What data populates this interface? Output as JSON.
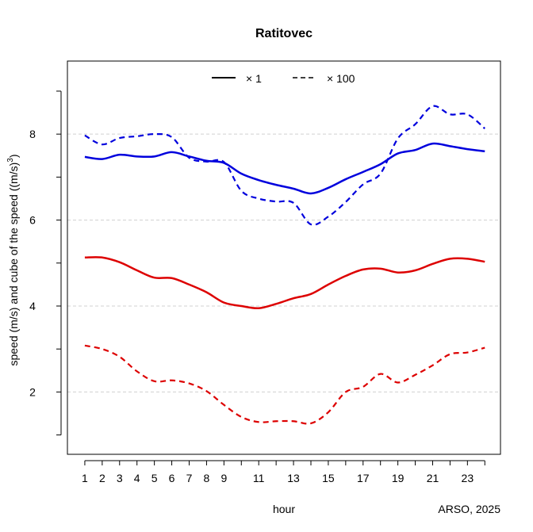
{
  "chart_data": {
    "type": "line",
    "title": "Ratitovec",
    "xlabel": "hour",
    "ylabel": "speed (m/s) and cube of the speed ((m/s)³)",
    "credit": "ARSO, 2025",
    "x": [
      1,
      2,
      3,
      4,
      5,
      6,
      7,
      8,
      9,
      10,
      11,
      12,
      13,
      14,
      15,
      16,
      17,
      18,
      19,
      20,
      21,
      22,
      23,
      24
    ],
    "x_tick_labels": [
      "1",
      "2",
      "3",
      "4",
      "5",
      "6",
      "7",
      "8",
      "9",
      "11",
      "13",
      "15",
      "17",
      "19",
      "21",
      "23"
    ],
    "x_tick_values": [
      1,
      2,
      3,
      4,
      5,
      6,
      7,
      8,
      9,
      11,
      13,
      15,
      17,
      19,
      21,
      23
    ],
    "x_minor_ticks": [
      1,
      2,
      3,
      4,
      5,
      6,
      7,
      8,
      9,
      10,
      11,
      12,
      13,
      14,
      15,
      16,
      17,
      18,
      19,
      20,
      21,
      22,
      23,
      24
    ],
    "y_tick_labels": [
      "2",
      "4",
      "6",
      "8"
    ],
    "y_tick_values": [
      2,
      4,
      6,
      8
    ],
    "y_minor_ticks": [
      1,
      3,
      5,
      7,
      9
    ],
    "xlim": [
      0.0,
      24.9
    ],
    "ylim": [
      0.55,
      9.7
    ],
    "grid": "horizontal dashed at labeled y ticks",
    "legend": {
      "placement": "top-center",
      "entries": [
        {
          "label": "× 1",
          "linestyle": "solid"
        },
        {
          "label": "× 100",
          "linestyle": "dashed"
        }
      ]
    },
    "series": [
      {
        "color": "#0000dd",
        "style": "solid",
        "values": [
          7.47,
          7.42,
          7.52,
          7.48,
          7.48,
          7.58,
          7.48,
          7.38,
          7.33,
          7.08,
          6.93,
          6.82,
          6.73,
          6.62,
          6.75,
          6.95,
          7.12,
          7.3,
          7.55,
          7.63,
          7.78,
          7.72,
          7.65,
          7.6
        ]
      },
      {
        "color": "#0000dd",
        "style": "dashed",
        "values": [
          7.97,
          7.76,
          7.91,
          7.95,
          8.0,
          7.93,
          7.45,
          7.36,
          7.35,
          6.68,
          6.5,
          6.43,
          6.4,
          5.9,
          6.08,
          6.42,
          6.83,
          7.08,
          7.9,
          8.23,
          8.65,
          8.46,
          8.46,
          8.13
        ]
      },
      {
        "color": "#dd0000",
        "style": "solid",
        "values": [
          5.13,
          5.13,
          5.02,
          4.83,
          4.66,
          4.65,
          4.5,
          4.32,
          4.08,
          4.0,
          3.95,
          4.05,
          4.18,
          4.28,
          4.5,
          4.7,
          4.85,
          4.87,
          4.78,
          4.83,
          4.98,
          5.1,
          5.1,
          5.03
        ]
      },
      {
        "color": "#dd0000",
        "style": "dashed",
        "values": [
          3.08,
          3.0,
          2.82,
          2.48,
          2.25,
          2.27,
          2.2,
          2.02,
          1.7,
          1.42,
          1.3,
          1.32,
          1.32,
          1.27,
          1.53,
          2.0,
          2.12,
          2.42,
          2.22,
          2.4,
          2.62,
          2.88,
          2.92,
          3.03
        ]
      }
    ]
  }
}
